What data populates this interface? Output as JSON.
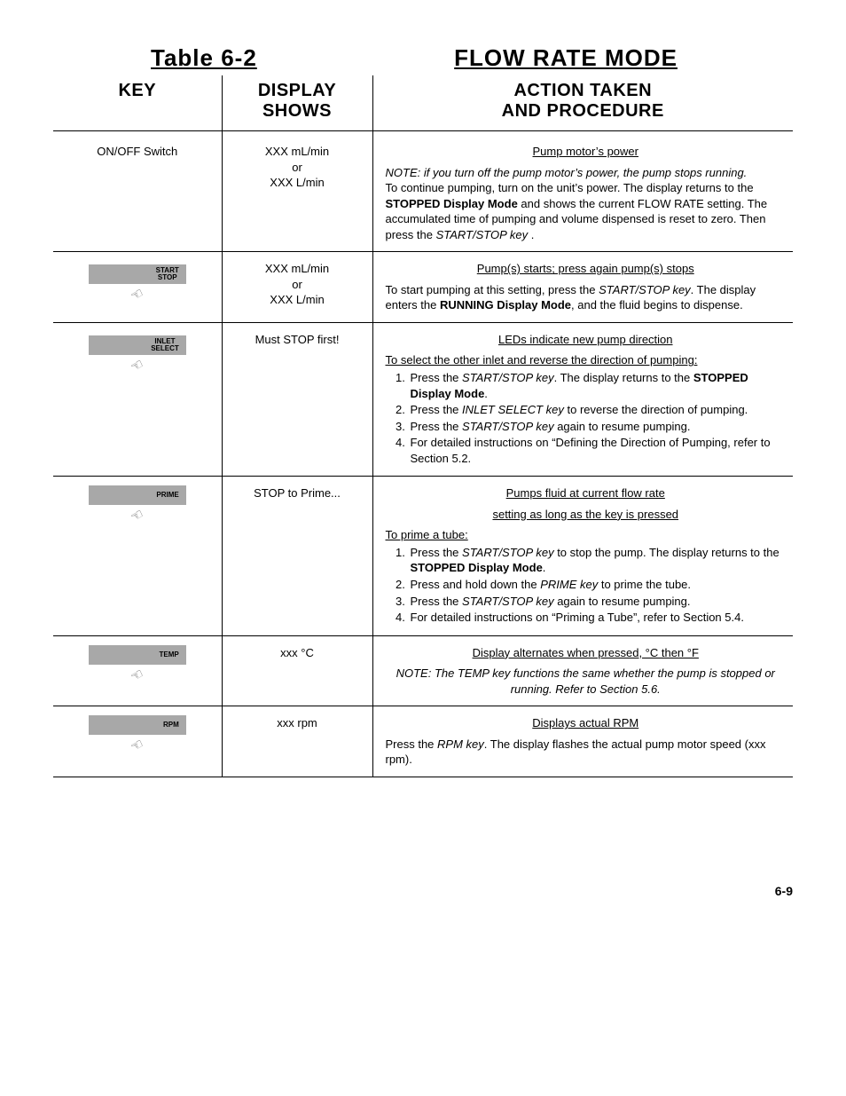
{
  "title_left": "Table  6-2",
  "title_right": "FLOW RATE MODE",
  "headers": {
    "key": "KEY",
    "display": "DISPLAY\nSHOWS",
    "action": "ACTION TAKEN\nAND PROCEDURE"
  },
  "page_number": "6-9",
  "rows": [
    {
      "key_type": "text",
      "key_text": "ON/OFF Switch",
      "display": "XXX mL/min\nor\nXXX L/min",
      "action_header": "Pump motor’s power",
      "note": "NOTE:  if you turn off the pump motor’s power, the pump stops running.",
      "body_html": "To continue pumping, turn on the unit’s power.  The display returns to the <b>STOPPED Display Mode</b> and shows the current FLOW RATE setting.  The accumulated time of pumping and volume dispensed is reset to zero.  Then press the <i>START/STOP key</i> ."
    },
    {
      "key_type": "button2",
      "key_label1": "START",
      "key_label2": "STOP",
      "display": "XXX mL/min\nor\nXXX L/min",
      "action_header": "Pump(s) starts; press again pump(s) stops",
      "body_html": "To start pumping at this setting, press the <i>START/STOP key</i>. The display enters the <b>RUNNING Display Mode</b>, and the fluid begins to dispense."
    },
    {
      "key_type": "button2",
      "key_label1": "INLET",
      "key_label2": "SELECT",
      "display": "Must STOP first!",
      "action_header": "LEDs indicate new pump direction",
      "intro_underline": "To select the other inlet and reverse the direction of pumping:",
      "list_html": [
        "Press the <i>START/STOP key</i>.  The display returns to the <b>STOPPED Display Mode</b>.",
        "Press the <i>INLET SELECT key</i>  to reverse the direction of pumping.",
        "Press the <i>START/STOP key</i> again to resume pumping.",
        "For detailed instructions on “Defining the Direction of Pumping, refer to Section 5.2."
      ]
    },
    {
      "key_type": "button1",
      "key_label1": "PRIME",
      "display": "STOP to Prime...",
      "action_header": "Pumps fluid at current flow rate",
      "action_header2": "setting as long as the key is pressed",
      "intro_underline": "To prime a tube:",
      "list_html": [
        "Press the <i>START/STOP key</i> to stop the pump.  The display returns to the <b>STOPPED Display Mode</b>.",
        "Press and hold down the <i>PRIME key</i> to prime the tube.",
        "Press the <i>START/STOP key</i> again to resume pumping.",
        "For detailed instructions on “Priming a Tube”, refer to Section 5.4."
      ]
    },
    {
      "key_type": "button1",
      "key_label1": "TEMP",
      "display": "xxx °C",
      "action_header": "Display alternates when pressed, °C then °F",
      "note": "NOTE:  The TEMP key functions the same whether the pump is stopped or running.  Refer to Section 5.6.",
      "note_centered": true
    },
    {
      "key_type": "button1",
      "key_label1": "RPM",
      "display": "xxx rpm",
      "action_header": "Displays actual RPM",
      "body_html": "Press the <i>RPM key</i>.  The display flashes the actual pump motor speed (xxx rpm)."
    }
  ]
}
